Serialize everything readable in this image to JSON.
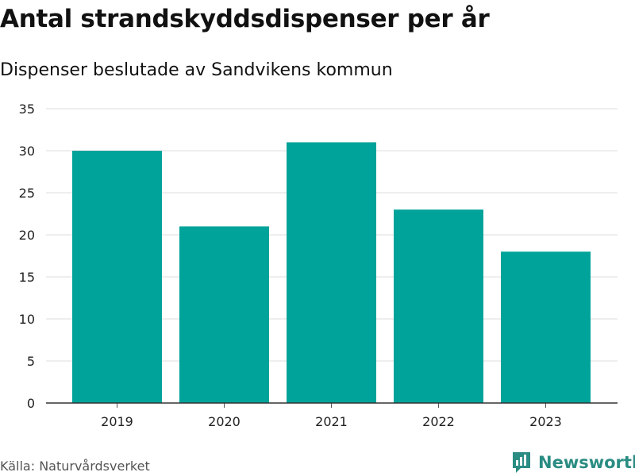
{
  "header": {
    "title": "Antal strandskyddsdispenser per år",
    "subtitle": "Dispenser beslutade av Sandvikens kommun"
  },
  "footer": {
    "source": "Källa: Naturvårdsverket",
    "brand": "Newsworthy"
  },
  "colors": {
    "bar": "#00a39a",
    "brand": "#2a8c82"
  },
  "chart_data": {
    "type": "bar",
    "title": "Antal strandskyddsdispenser per år",
    "subtitle": "Dispenser beslutade av Sandvikens kommun",
    "categories": [
      "2019",
      "2020",
      "2021",
      "2022",
      "2023"
    ],
    "values": [
      30,
      21,
      31,
      23,
      18
    ],
    "xlabel": "",
    "ylabel": "",
    "ylim": [
      0,
      35
    ],
    "yticks": [
      0,
      5,
      10,
      15,
      20,
      25,
      30,
      35
    ],
    "grid": true,
    "legend": "none"
  }
}
